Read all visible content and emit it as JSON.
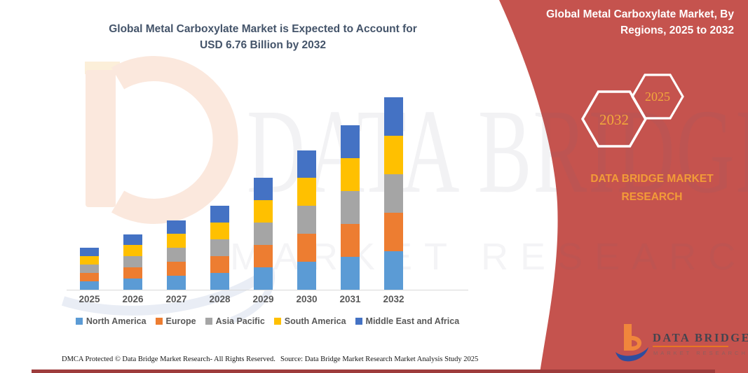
{
  "header": {
    "title_line1": "Global Metal Carboxylate Market is Expected to Account for",
    "title_line2": "USD 6.76 Billion by 2032"
  },
  "panel": {
    "title_line1": "Global Metal Carboxylate Market, By",
    "title_line2": "Regions, 2025 to 2032",
    "hexagons": [
      {
        "label": "2032"
      },
      {
        "label": "2025"
      }
    ],
    "brand_line1": "DATA BRIDGE MARKET",
    "brand_line2": "RESEARCH"
  },
  "watermark": {
    "line1": "DATA BRIDGE",
    "line2": "MARKET RESEARCH"
  },
  "logo": {
    "name": "DATA BRIDGE",
    "subtitle": "MARKET RESEARCH"
  },
  "footer": {
    "dmca": "DMCA Protected © Data Bridge Market Research-  All Rights Reserved.",
    "source": "Source: Data Bridge Market Research  Market Analysis Study 2025"
  },
  "colors": {
    "panel_red": "#C5534E",
    "bottom_strip_maroon": "#9E3C3C",
    "title_blue": "#44546A",
    "accent_orange": "#F29B38",
    "hexagon_gold": "#F2A93B",
    "axis_gray": "#D9D9D9",
    "label_gray": "#595959"
  },
  "chart_data": {
    "type": "bar",
    "stacked": true,
    "title": "Global Metal Carboxylate Market is Expected to Account for USD 6.76 Billion by 2032",
    "xlabel": "",
    "ylabel": "",
    "units": "USD Billion",
    "values_estimated": true,
    "y_axis_shown": false,
    "grid": false,
    "legend_position": "bottom",
    "categories": [
      "2025",
      "2026",
      "2027",
      "2028",
      "2029",
      "2030",
      "2031",
      "2032"
    ],
    "series": [
      {
        "name": "North America",
        "color": "#5B9BD5",
        "values": [
          0.29,
          0.39,
          0.49,
          0.59,
          0.79,
          0.98,
          1.16,
          1.35
        ]
      },
      {
        "name": "Europe",
        "color": "#ED7D31",
        "values": [
          0.29,
          0.39,
          0.49,
          0.59,
          0.79,
          0.98,
          1.16,
          1.35
        ]
      },
      {
        "name": "Asia Pacific",
        "color": "#A5A5A5",
        "values": [
          0.29,
          0.39,
          0.49,
          0.59,
          0.79,
          0.98,
          1.16,
          1.35
        ]
      },
      {
        "name": "South America",
        "color": "#FFC000",
        "values": [
          0.29,
          0.39,
          0.49,
          0.59,
          0.79,
          0.98,
          1.16,
          1.35
        ]
      },
      {
        "name": "Middle East and Africa",
        "color": "#4472C4",
        "values": [
          0.29,
          0.38,
          0.48,
          0.59,
          0.78,
          0.97,
          1.16,
          1.36
        ]
      }
    ],
    "totals_by_year": [
      1.45,
      1.94,
      2.44,
      2.95,
      3.94,
      4.89,
      5.8,
      6.76
    ]
  }
}
